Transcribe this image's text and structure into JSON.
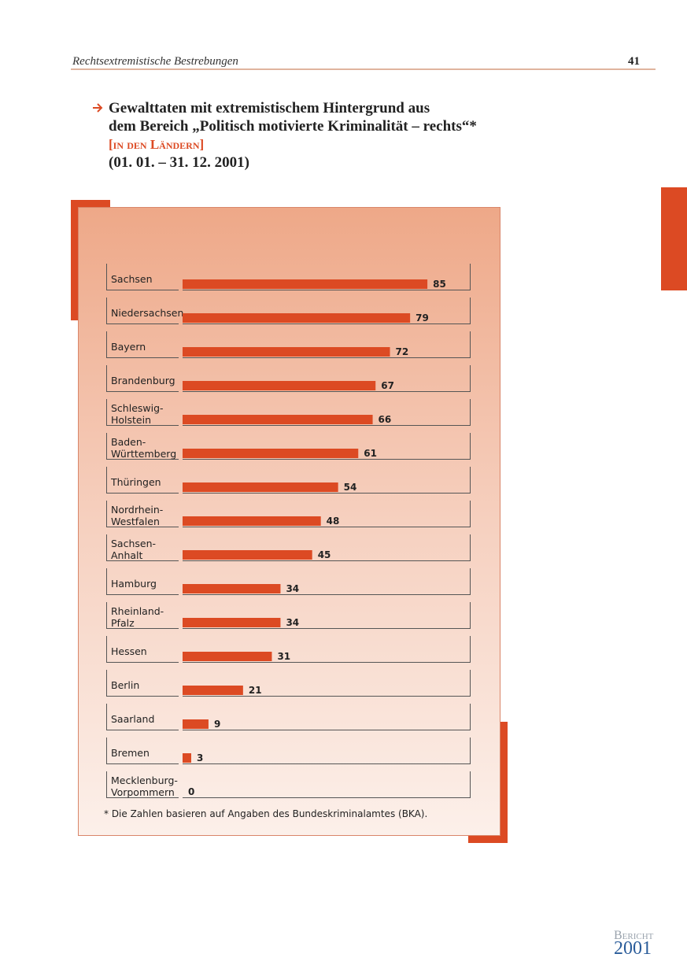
{
  "header": {
    "section": "Rechtsextremistische Bestrebungen",
    "page": "41"
  },
  "chart_data": {
    "type": "bar",
    "title": [
      "Gewalttaten mit extremistischem Hintergrund aus",
      "dem Bereich „Politisch motivierte Kriminalität – rechts“*"
    ],
    "subtitle": "[in den Ländern]",
    "period": "(01. 01. – 31. 12. 2001)",
    "categories": [
      "Sachsen",
      "Niedersachsen",
      "Bayern",
      "Brandenburg",
      "Schleswig-Holstein",
      "Baden-Württemberg",
      "Thüringen",
      "Nordrhein-Westfalen",
      "Sachsen-Anhalt",
      "Hamburg",
      "Rheinland-Pfalz",
      "Hessen",
      "Berlin",
      "Saarland",
      "Bremen",
      "Mecklenburg-Vorpommern"
    ],
    "values": [
      85,
      79,
      72,
      67,
      66,
      61,
      54,
      48,
      45,
      34,
      34,
      31,
      21,
      9,
      3,
      0
    ],
    "color": "#dc4a23",
    "footnote": "* Die Zahlen basieren auf Angaben des Bundeskriminalamtes (BKA)."
  },
  "footer": {
    "brand": "Bericht",
    "year": "2001"
  }
}
